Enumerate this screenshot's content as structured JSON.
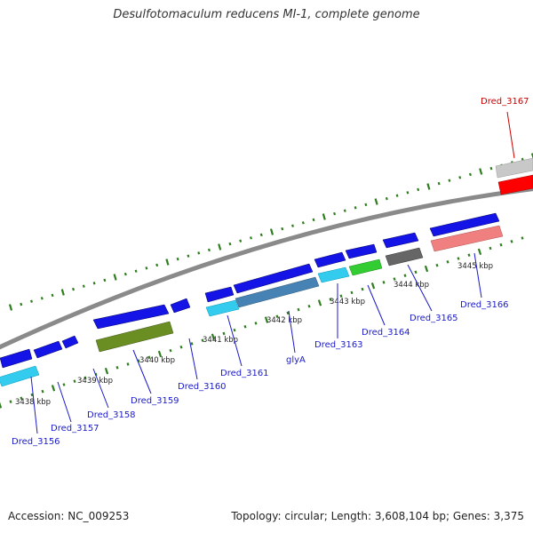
{
  "title": "Desulfotomaculum reducens MI-1, complete genome",
  "footer": {
    "accession": "Accession: NC_009253",
    "topology": "Topology: circular; Length: 3,608,104 bp; Genes: 3,375"
  },
  "colors": {
    "backbone": "#8a8a8a",
    "tick": "#2e7d1e",
    "label_blue": "#1a1acc",
    "label_red": "#cc0000",
    "cds_blue": "#1414e6",
    "rna_red": "#ff0000",
    "gene_grey": "#c8c8c8"
  },
  "kbp_ticks": [
    {
      "label": "3438 kbp"
    },
    {
      "label": "3439 kbp"
    },
    {
      "label": "3440 kbp"
    },
    {
      "label": "3441 kbp"
    },
    {
      "label": "3442 kbp"
    },
    {
      "label": "3443 kbp"
    },
    {
      "label": "3444 kbp"
    },
    {
      "label": "3445 kbp"
    }
  ],
  "genes": [
    {
      "name": "Dred_3156",
      "color": "#1a1acc"
    },
    {
      "name": "Dred_3157",
      "color": "#1a1acc"
    },
    {
      "name": "Dred_3158",
      "color": "#1a1acc"
    },
    {
      "name": "Dred_3159",
      "color": "#1a1acc"
    },
    {
      "name": "Dred_3160",
      "color": "#1a1acc"
    },
    {
      "name": "Dred_3161",
      "color": "#1a1acc"
    },
    {
      "name": "glyA",
      "color": "#1a1acc"
    },
    {
      "name": "Dred_3163",
      "color": "#1a1acc"
    },
    {
      "name": "Dred_3164",
      "color": "#1a1acc"
    },
    {
      "name": "Dred_3165",
      "color": "#1a1acc"
    },
    {
      "name": "Dred_3166",
      "color": "#1a1acc"
    },
    {
      "name": "Dred_3167",
      "color": "#cc0000"
    }
  ]
}
